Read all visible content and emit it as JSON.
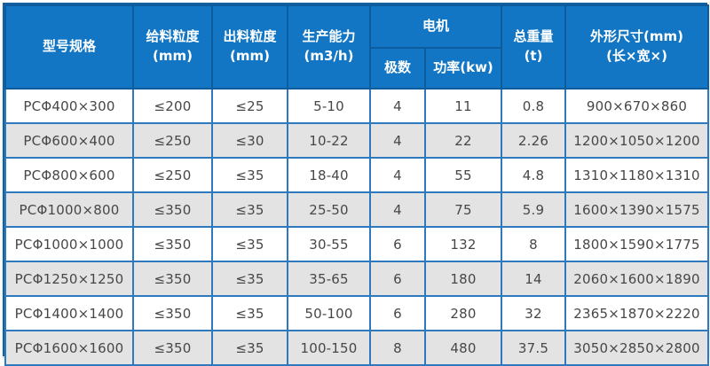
{
  "table": {
    "header": {
      "model": "型号规格",
      "feed_size": "给料粒度\n(mm)",
      "output_size": "出料粒度\n(mm)",
      "capacity": "生产能力\n(m3/h)",
      "motor_group": "电机",
      "motor_poles": "极数",
      "motor_power": "功率(kw)",
      "total_weight": "总重量\n(t)",
      "dimensions": "外形尺寸(mm)\n(长×宽×)"
    },
    "rows": [
      [
        "PCΦ400×300",
        "≤200",
        "≤25",
        "5-10",
        "4",
        "11",
        "0.8",
        "900×670×860"
      ],
      [
        "PCΦ600×400",
        "≤250",
        "≤30",
        "10-22",
        "4",
        "22",
        "2.26",
        "1200×1050×1200"
      ],
      [
        "PCΦ800×600",
        "≤250",
        "≤35",
        "18-40",
        "4",
        "55",
        "4.8",
        "1310×1180×1310"
      ],
      [
        "PCΦ1000×800",
        "≤350",
        "≤35",
        "25-50",
        "4",
        "75",
        "5.9",
        "1600×1390×1575"
      ],
      [
        "PCΦ1000×1000",
        "≤350",
        "≤35",
        "30-55",
        "6",
        "132",
        "8",
        "1800×1590×1775"
      ],
      [
        "PCΦ1250×1250",
        "≤350",
        "≤35",
        "35-65",
        "6",
        "180",
        "14",
        "2060×1600×1890"
      ],
      [
        "PCΦ1400×1400",
        "≤350",
        "≤35",
        "50-100",
        "6",
        "280",
        "32",
        "2365×1870×2220"
      ],
      [
        "PCΦ1600×1600",
        "≤350",
        "≤35",
        "100-150",
        "8",
        "480",
        "37.5",
        "3050×2850×2800"
      ]
    ],
    "colors": {
      "header_bg": "#1276c4",
      "header_border": "#0d5c9e",
      "cell_border": "#2e79bd",
      "outer_border": "#14619f",
      "row_alt_bg": "#e3e3e3",
      "row_bg": "#ffffff",
      "text": "#474747",
      "header_text": "#ffffff"
    }
  }
}
